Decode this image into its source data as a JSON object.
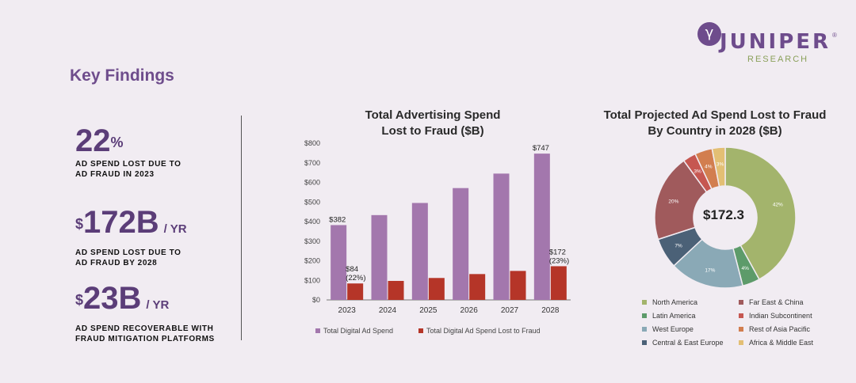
{
  "page": {
    "title": "Key Findings",
    "logo": {
      "name": "JUNIPER",
      "sub": "RESEARCH"
    }
  },
  "stats": [
    {
      "value": "22",
      "sup": "%",
      "unit": "",
      "desc": "AD SPEND LOST DUE TO\nAD FRAUD IN 2023"
    },
    {
      "value": "172B",
      "sup": "$",
      "unit": "/ YR",
      "desc": "AD SPEND LOST DUE TO\nAD FRAUD BY 2028"
    },
    {
      "value": "23B",
      "sup": "$",
      "unit": "/ YR",
      "desc": "AD SPEND RECOVERABLE WITH\nFRAUD MITIGATION PLATFORMS"
    }
  ],
  "chart_data": [
    {
      "type": "bar",
      "title": "Total Advertising Spend\nLost to Fraud ($B)",
      "categories": [
        "2023",
        "2024",
        "2025",
        "2026",
        "2027",
        "2028"
      ],
      "series": [
        {
          "name": "Total Digital Ad Spend",
          "color": "#a377ad",
          "values": [
            382,
            433,
            495,
            571,
            645,
            747
          ]
        },
        {
          "name": "Total Digital Ad Spend Lost to Fraud",
          "color": "#b53528",
          "values": [
            84,
            97,
            112,
            132,
            148,
            172
          ]
        }
      ],
      "ylim": [
        0,
        800
      ],
      "yticks": [
        0,
        100,
        200,
        300,
        400,
        500,
        600,
        700,
        800
      ],
      "ytick_labels": [
        "$0",
        "$100",
        "$200",
        "$300",
        "$400",
        "$500",
        "$600",
        "$700",
        "$800"
      ],
      "data_labels": [
        {
          "series": 0,
          "index": 0,
          "text": "$382"
        },
        {
          "series": 1,
          "index": 0,
          "text": "$84\n(22%)"
        },
        {
          "series": 0,
          "index": 5,
          "text": "$747"
        },
        {
          "series": 1,
          "index": 5,
          "text": "$172\n(23%)"
        }
      ],
      "legend_position": "bottom"
    },
    {
      "type": "pie",
      "donut": true,
      "title": "Total Projected Ad Spend Lost to Fraud\nBy Country in 2028 ($B)",
      "center_label": "$172.3",
      "slices": [
        {
          "label": "North America",
          "value": 42,
          "text": "42%",
          "color": "#a3b46c"
        },
        {
          "label": "Latin America",
          "value": 4,
          "text": "4%",
          "color": "#5d9b6a"
        },
        {
          "label": "West Europe",
          "value": 17,
          "text": "17%",
          "color": "#8aa9b6"
        },
        {
          "label": "Central & East Europe",
          "value": 7,
          "text": "7%",
          "color": "#4b6177"
        },
        {
          "label": "Far East & China",
          "value": 20,
          "text": "20%",
          "color": "#a05a5c"
        },
        {
          "label": "Indian Subcontinent",
          "value": 3,
          "text": "3%",
          "color": "#c65751"
        },
        {
          "label": "Rest of Asia Pacific",
          "value": 4,
          "text": "4%",
          "color": "#d27e4f"
        },
        {
          "label": "Africa & Middle East",
          "value": 3,
          "text": "3%",
          "color": "#e3bf74"
        }
      ],
      "legend_position": "bottom"
    }
  ]
}
